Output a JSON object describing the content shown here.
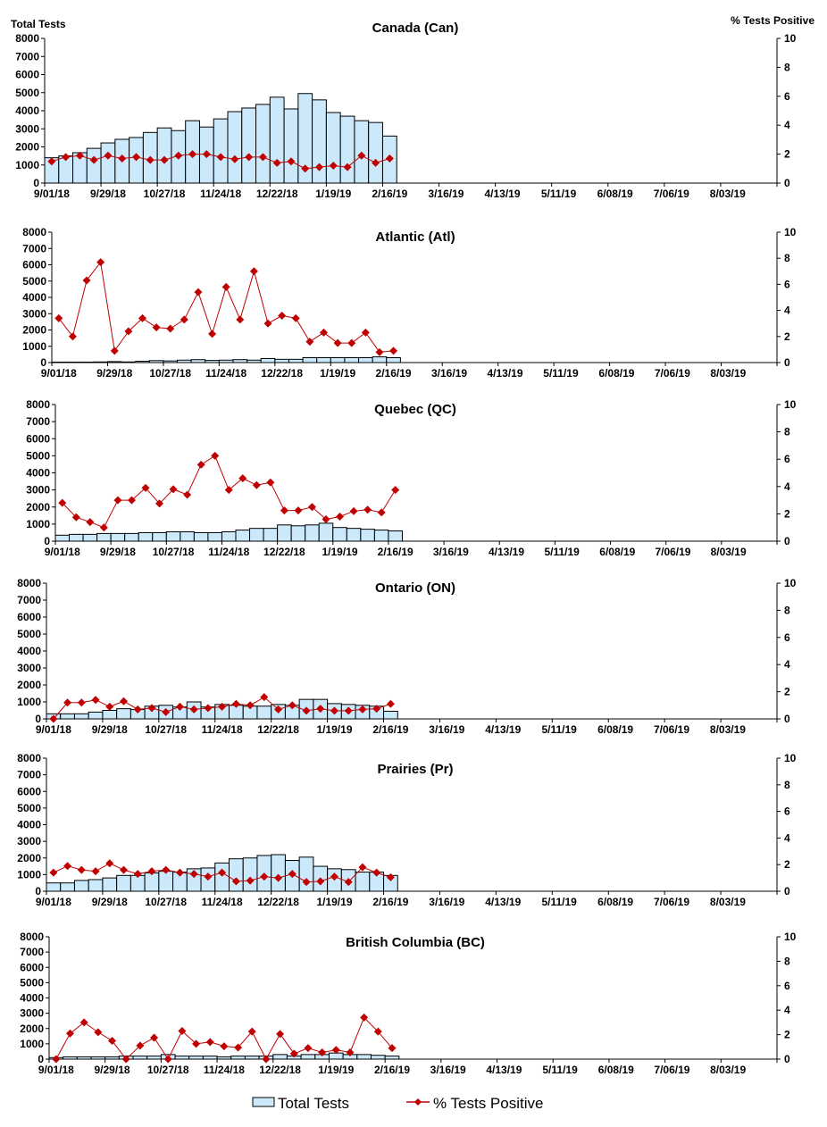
{
  "colors": {
    "bar_fill": "#cce9fb",
    "bar_stroke": "#000000",
    "line": "#c00000"
  },
  "chart_data": {
    "type": "bar+line",
    "ylabel_left": "Total Tests",
    "ylabel_right": "% Tests Positive",
    "ylim_left": [
      0,
      8000
    ],
    "ylim_right": [
      0,
      10
    ],
    "y_ticks": [
      "0",
      "1000",
      "2000",
      "3000",
      "4000",
      "5000",
      "6000",
      "7000",
      "8000"
    ],
    "y2_ticks": [
      "0",
      "2",
      "4",
      "6",
      "8",
      "10"
    ],
    "x_tick_labels": [
      "9/01/18",
      "9/29/18",
      "10/27/18",
      "11/24/18",
      "12/22/18",
      "1/19/19",
      "2/16/19",
      "3/16/19",
      "4/13/19",
      "5/11/19",
      "6/08/19",
      "7/06/19",
      "8/03/19"
    ],
    "weeks_on_axis": 52,
    "legend": {
      "position": "bottom",
      "items": [
        "Total Tests",
        "% Tests Positive"
      ]
    },
    "panels": [
      {
        "title": "Canada (Can)",
        "total_tests": [
          1400,
          1500,
          1680,
          1920,
          2220,
          2420,
          2520,
          2800,
          3050,
          2900,
          3450,
          3100,
          3550,
          3950,
          4150,
          4350,
          4750,
          4100,
          4950,
          4600,
          3900,
          3700,
          3450,
          3350,
          2600
        ],
        "pct_positive": [
          1.5,
          1.8,
          1.9,
          1.6,
          1.9,
          1.7,
          1.8,
          1.6,
          1.6,
          1.9,
          2.0,
          2.0,
          1.8,
          1.65,
          1.8,
          1.8,
          1.4,
          1.5,
          1.0,
          1.1,
          1.2,
          1.1,
          1.9,
          1.4,
          1.7
        ]
      },
      {
        "title": "Atlantic (Atl)",
        "total_tests": [
          30,
          30,
          30,
          40,
          60,
          40,
          80,
          120,
          100,
          150,
          180,
          130,
          150,
          180,
          150,
          250,
          200,
          200,
          300,
          300,
          300,
          300,
          300,
          350,
          300
        ],
        "pct_positive": [
          3.4,
          2.0,
          6.3,
          7.7,
          0.9,
          2.4,
          3.4,
          2.7,
          2.6,
          3.3,
          5.4,
          2.2,
          5.8,
          3.3,
          7.0,
          3.0,
          3.6,
          3.4,
          1.6,
          2.3,
          1.5,
          1.5,
          2.3,
          0.8,
          0.9
        ]
      },
      {
        "title": "Quebec (QC)",
        "total_tests": [
          350,
          400,
          400,
          450,
          450,
          450,
          500,
          500,
          550,
          550,
          500,
          500,
          550,
          650,
          750,
          750,
          950,
          900,
          950,
          1050,
          800,
          750,
          700,
          650,
          600
        ],
        "pct_positive": [
          2.8,
          1.75,
          1.4,
          1.0,
          3.0,
          3.0,
          3.9,
          2.75,
          3.8,
          3.4,
          5.6,
          6.25,
          3.75,
          4.6,
          4.1,
          4.3,
          2.25,
          2.25,
          2.5,
          1.6,
          1.8,
          2.2,
          2.3,
          2.1,
          3.75
        ]
      },
      {
        "title": "Ontario (ON)",
        "total_tests": [
          300,
          300,
          300,
          400,
          500,
          600,
          550,
          750,
          800,
          700,
          1000,
          700,
          850,
          800,
          750,
          750,
          850,
          800,
          1150,
          1150,
          900,
          850,
          800,
          750,
          450
        ],
        "pct_positive": [
          0,
          1.2,
          1.2,
          1.4,
          0.9,
          1.3,
          0.7,
          0.8,
          0.5,
          0.9,
          0.7,
          0.8,
          0.9,
          1.1,
          1.0,
          1.6,
          0.7,
          1.0,
          0.6,
          0.75,
          0.6,
          0.6,
          0.7,
          0.75,
          1.1
        ]
      },
      {
        "title": "Prairies (Pr)",
        "total_tests": [
          500,
          500,
          650,
          700,
          800,
          950,
          950,
          1100,
          1200,
          1150,
          1350,
          1400,
          1700,
          1950,
          2000,
          2150,
          2200,
          1850,
          2050,
          1500,
          1350,
          1300,
          1150,
          1150,
          950
        ],
        "pct_positive": [
          1.4,
          1.9,
          1.6,
          1.5,
          2.1,
          1.6,
          1.3,
          1.5,
          1.6,
          1.4,
          1.3,
          1.1,
          1.4,
          0.75,
          0.8,
          1.1,
          1.0,
          1.3,
          0.7,
          0.75,
          1.1,
          0.7,
          1.8,
          1.4,
          1.05
        ]
      },
      {
        "title": "British Columbia (BC)",
        "total_tests": [
          100,
          150,
          150,
          150,
          150,
          200,
          200,
          200,
          300,
          200,
          200,
          200,
          150,
          200,
          200,
          200,
          300,
          200,
          300,
          300,
          400,
          300,
          300,
          250,
          200
        ],
        "pct_positive": [
          0,
          2.1,
          3.0,
          2.2,
          1.5,
          0,
          1.1,
          1.75,
          0,
          2.3,
          1.25,
          1.4,
          1.05,
          0.95,
          2.25,
          0,
          2.05,
          0.45,
          0.9,
          0.55,
          0.75,
          0.55,
          3.4,
          2.25,
          0.9
        ]
      }
    ]
  }
}
